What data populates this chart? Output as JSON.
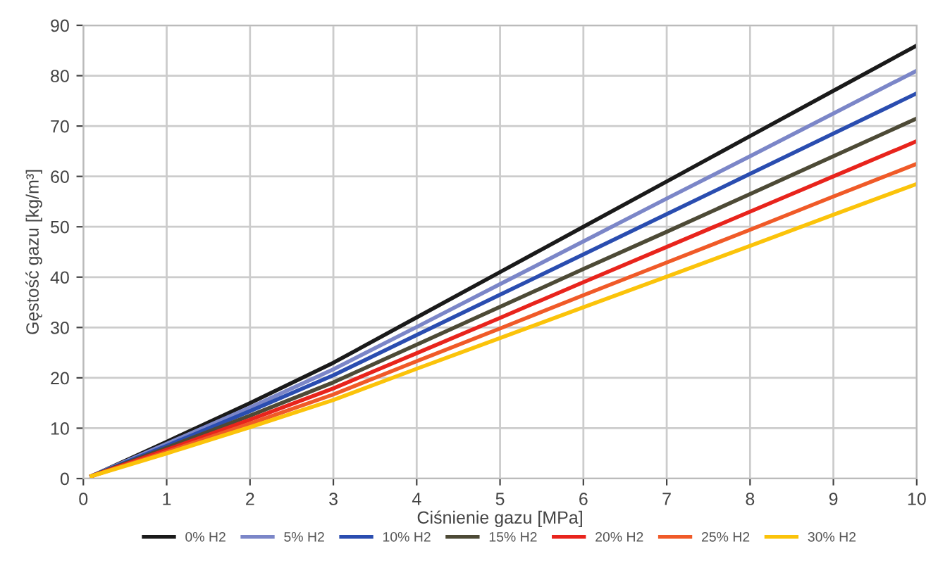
{
  "chart_data": {
    "type": "line",
    "xlabel": "Ciśnienie gazu [MPa]",
    "ylabel": "Gęstość gazu [kg/m³]",
    "x": [
      0.1,
      1,
      2,
      3,
      4,
      5,
      6,
      7,
      8,
      9,
      10
    ],
    "series": [
      {
        "name": "0% H2",
        "color": "#1a1a1a",
        "values": [
          0.5,
          7.3,
          15,
          23,
          32,
          41,
          50,
          59,
          68,
          77,
          86
        ]
      },
      {
        "name": "5% H2",
        "color": "#7b86c8",
        "values": [
          0.5,
          6.9,
          14.1,
          21.7,
          30.1,
          38.6,
          47.1,
          55.6,
          64,
          72.5,
          81
        ]
      },
      {
        "name": "10% H2",
        "color": "#2a4db0",
        "values": [
          0.5,
          6.5,
          13.4,
          20.5,
          28.5,
          36.5,
          44.5,
          52.5,
          60.5,
          68.5,
          76.5
        ]
      },
      {
        "name": "15% H2",
        "color": "#4d4a36",
        "values": [
          0.5,
          6.1,
          12.5,
          19.1,
          26.6,
          34.1,
          41.6,
          49,
          56.5,
          64,
          71.5
        ]
      },
      {
        "name": "20% H2",
        "color": "#e8241c",
        "values": [
          0.5,
          5.7,
          11.7,
          17.9,
          24.9,
          31.9,
          39,
          46,
          53,
          60,
          67
        ]
      },
      {
        "name": "25% H2",
        "color": "#f05a28",
        "values": [
          0.5,
          5.3,
          10.9,
          16.7,
          23.3,
          29.8,
          36.4,
          42.9,
          49.4,
          56,
          62.5
        ]
      },
      {
        "name": "30% H2",
        "color": "#fbc30a",
        "values": [
          0.5,
          5,
          10.2,
          15.6,
          21.8,
          27.9,
          34,
          40.1,
          46.2,
          52.4,
          58.5
        ]
      }
    ],
    "xlim": [
      0,
      10
    ],
    "xticks": [
      0,
      1,
      2,
      3,
      4,
      5,
      6,
      7,
      8,
      9,
      10
    ],
    "ylim": [
      0,
      90
    ],
    "yticks": [
      0,
      10,
      20,
      30,
      40,
      50,
      60,
      70,
      80,
      90
    ],
    "grid": true,
    "legend": "bottom",
    "marker": "none",
    "line_style": "solid"
  }
}
